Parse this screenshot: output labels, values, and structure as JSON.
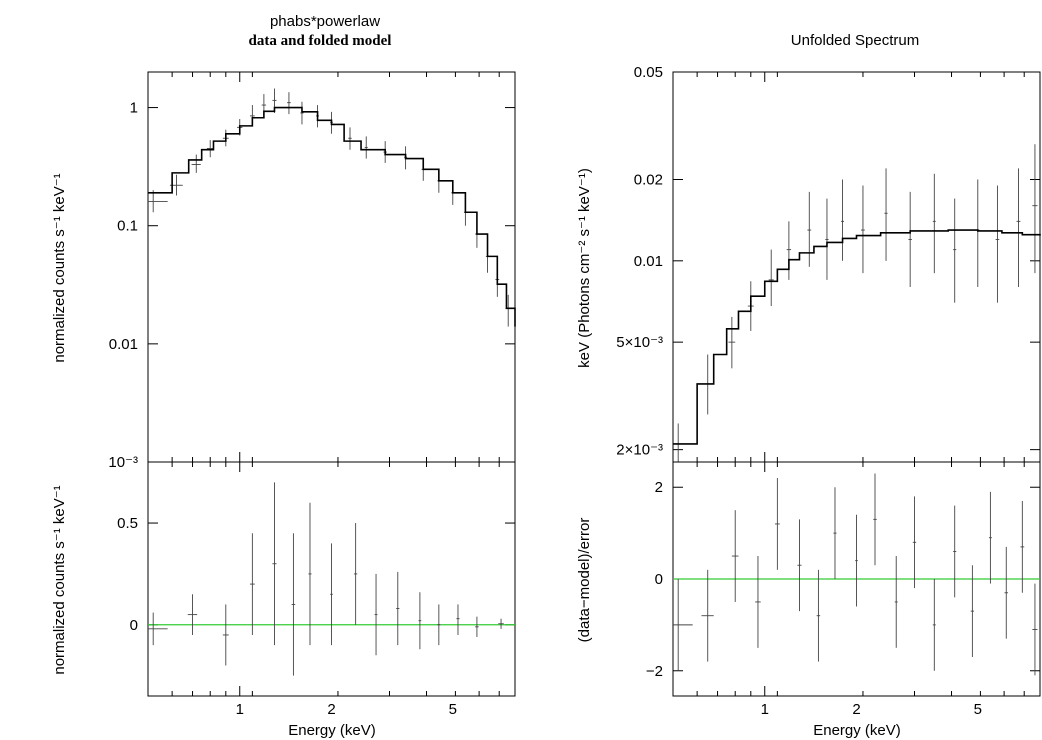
{
  "left": {
    "title": "phabs*powerlaw",
    "subtitle": "data and folded model"
  },
  "right": {
    "title": "Unfolded Spectrum"
  },
  "chart_data": [
    {
      "id": "folded",
      "type": "scatter",
      "ylabel": "normalized counts s⁻¹ keV⁻¹",
      "xscale": "log",
      "yscale": "log",
      "xlim": [
        0.5,
        8.0
      ],
      "ylim": [
        0.001,
        2.0
      ],
      "yticks": [
        {
          "v": 1,
          "label": "1"
        },
        {
          "v": 0.1,
          "label": "0.1"
        },
        {
          "v": 0.01,
          "label": "0.01"
        },
        {
          "v": 0.001,
          "label": "10⁻³"
        }
      ],
      "model_step": [
        [
          0.5,
          0.19
        ],
        [
          0.6,
          0.28
        ],
        [
          0.68,
          0.36
        ],
        [
          0.75,
          0.44
        ],
        [
          0.82,
          0.52
        ],
        [
          0.9,
          0.6
        ],
        [
          1.0,
          0.7
        ],
        [
          1.1,
          0.82
        ],
        [
          1.2,
          0.93
        ],
        [
          1.3,
          1.0
        ],
        [
          1.45,
          1.0
        ],
        [
          1.6,
          0.92
        ],
        [
          1.8,
          0.78
        ],
        [
          2.0,
          0.72
        ],
        [
          2.2,
          0.52
        ],
        [
          2.5,
          0.44
        ],
        [
          3.0,
          0.4
        ],
        [
          3.5,
          0.37
        ],
        [
          4.0,
          0.3
        ],
        [
          4.5,
          0.24
        ],
        [
          5.0,
          0.19
        ],
        [
          5.5,
          0.13
        ],
        [
          6.0,
          0.085
        ],
        [
          6.5,
          0.055
        ],
        [
          7.0,
          0.032
        ],
        [
          7.5,
          0.02
        ],
        [
          8.0,
          0.014
        ]
      ],
      "data_points": [
        {
          "x": 0.52,
          "y": 0.16,
          "dx": 0.06,
          "lo": 0.13,
          "hi": 0.2
        },
        {
          "x": 0.62,
          "y": 0.22,
          "dx": 0.03,
          "lo": 0.18,
          "hi": 0.27
        },
        {
          "x": 0.72,
          "y": 0.33,
          "dx": 0.025,
          "lo": 0.28,
          "hi": 0.4
        },
        {
          "x": 0.8,
          "y": 0.45,
          "dx": 0.02,
          "lo": 0.38,
          "hi": 0.53
        },
        {
          "x": 0.9,
          "y": 0.55,
          "dx": 0.02,
          "lo": 0.47,
          "hi": 0.65
        },
        {
          "x": 1.0,
          "y": 0.68,
          "dx": 0.02,
          "lo": 0.58,
          "hi": 0.8
        },
        {
          "x": 1.1,
          "y": 0.85,
          "dx": 0.02,
          "lo": 0.7,
          "hi": 1.05
        },
        {
          "x": 1.2,
          "y": 1.05,
          "dx": 0.02,
          "lo": 0.85,
          "hi": 1.3
        },
        {
          "x": 1.3,
          "y": 1.15,
          "dx": 0.02,
          "lo": 0.9,
          "hi": 1.45
        },
        {
          "x": 1.45,
          "y": 1.1,
          "dx": 0.02,
          "lo": 0.88,
          "hi": 1.35
        },
        {
          "x": 1.6,
          "y": 0.9,
          "dx": 0.02,
          "lo": 0.72,
          "hi": 1.12
        },
        {
          "x": 1.8,
          "y": 0.85,
          "dx": 0.02,
          "lo": 0.68,
          "hi": 1.05
        },
        {
          "x": 2.0,
          "y": 0.75,
          "dx": 0.02,
          "lo": 0.6,
          "hi": 0.92
        },
        {
          "x": 2.3,
          "y": 0.55,
          "dx": 0.03,
          "lo": 0.44,
          "hi": 0.68
        },
        {
          "x": 2.6,
          "y": 0.46,
          "dx": 0.03,
          "lo": 0.37,
          "hi": 0.57
        },
        {
          "x": 3.0,
          "y": 0.42,
          "dx": 0.04,
          "lo": 0.34,
          "hi": 0.52
        },
        {
          "x": 3.5,
          "y": 0.38,
          "dx": 0.04,
          "lo": 0.3,
          "hi": 0.47
        },
        {
          "x": 4.0,
          "y": 0.3,
          "dx": 0.05,
          "lo": 0.24,
          "hi": 0.37
        },
        {
          "x": 4.5,
          "y": 0.24,
          "dx": 0.05,
          "lo": 0.19,
          "hi": 0.3
        },
        {
          "x": 5.0,
          "y": 0.19,
          "dx": 0.06,
          "lo": 0.15,
          "hi": 0.24
        },
        {
          "x": 5.5,
          "y": 0.13,
          "dx": 0.06,
          "lo": 0.1,
          "hi": 0.16
        },
        {
          "x": 6.0,
          "y": 0.085,
          "dx": 0.08,
          "lo": 0.065,
          "hi": 0.11
        },
        {
          "x": 6.5,
          "y": 0.055,
          "dx": 0.08,
          "lo": 0.04,
          "hi": 0.07
        },
        {
          "x": 7.0,
          "y": 0.035,
          "dx": 0.1,
          "lo": 0.025,
          "hi": 0.045
        },
        {
          "x": 7.6,
          "y": 0.02,
          "dx": 0.15,
          "lo": 0.014,
          "hi": 0.026
        }
      ]
    },
    {
      "id": "folded_residual",
      "type": "scatter",
      "ylabel": "normalized counts s⁻¹ keV⁻¹",
      "xlabel": "Energy (keV)",
      "xscale": "log",
      "yscale": "linear",
      "xlim": [
        0.5,
        8.0
      ],
      "ylim": [
        -0.35,
        0.8
      ],
      "yticks": [
        {
          "v": 0.5,
          "label": "0.5"
        },
        {
          "v": 0,
          "label": "0"
        }
      ],
      "xticks": [
        {
          "v": 1,
          "label": "1"
        },
        {
          "v": 2,
          "label": "2"
        },
        {
          "v": 5,
          "label": "5"
        }
      ],
      "zero_line_color": "#33cc33",
      "data_points": [
        {
          "x": 0.52,
          "y": -0.02,
          "dx": 0.06,
          "lo": -0.1,
          "hi": 0.06
        },
        {
          "x": 0.7,
          "y": 0.05,
          "dx": 0.025,
          "lo": -0.05,
          "hi": 0.15
        },
        {
          "x": 0.9,
          "y": -0.05,
          "dx": 0.02,
          "lo": -0.2,
          "hi": 0.1
        },
        {
          "x": 1.1,
          "y": 0.2,
          "dx": 0.02,
          "lo": -0.05,
          "hi": 0.45
        },
        {
          "x": 1.3,
          "y": 0.3,
          "dx": 0.02,
          "lo": -0.1,
          "hi": 0.7
        },
        {
          "x": 1.5,
          "y": 0.1,
          "dx": 0.02,
          "lo": -0.25,
          "hi": 0.45
        },
        {
          "x": 1.7,
          "y": 0.25,
          "dx": 0.02,
          "lo": -0.1,
          "hi": 0.6
        },
        {
          "x": 2.0,
          "y": 0.15,
          "dx": 0.02,
          "lo": -0.1,
          "hi": 0.4
        },
        {
          "x": 2.4,
          "y": 0.25,
          "dx": 0.03,
          "lo": 0.0,
          "hi": 0.5
        },
        {
          "x": 2.8,
          "y": 0.05,
          "dx": 0.03,
          "lo": -0.15,
          "hi": 0.25
        },
        {
          "x": 3.3,
          "y": 0.08,
          "dx": 0.04,
          "lo": -0.1,
          "hi": 0.26
        },
        {
          "x": 3.9,
          "y": 0.02,
          "dx": 0.04,
          "lo": -0.12,
          "hi": 0.16
        },
        {
          "x": 4.5,
          "y": 0.0,
          "dx": 0.05,
          "lo": -0.1,
          "hi": 0.1
        },
        {
          "x": 5.2,
          "y": 0.03,
          "dx": 0.06,
          "lo": -0.05,
          "hi": 0.1
        },
        {
          "x": 6.0,
          "y": -0.01,
          "dx": 0.08,
          "lo": -0.06,
          "hi": 0.04
        },
        {
          "x": 7.2,
          "y": 0.005,
          "dx": 0.15,
          "lo": -0.02,
          "hi": 0.03
        }
      ]
    },
    {
      "id": "unfolded",
      "type": "scatter",
      "ylabel": "keV (Photons cm⁻² s⁻¹ keV⁻¹)",
      "xscale": "log",
      "yscale": "log",
      "xlim": [
        0.5,
        8.0
      ],
      "ylim": [
        0.0018,
        0.05
      ],
      "yticks": [
        {
          "v": 0.05,
          "label": "0.05"
        },
        {
          "v": 0.02,
          "label": "0.02"
        },
        {
          "v": 0.01,
          "label": "0.01"
        },
        {
          "v": 0.005,
          "label": "5×10⁻³"
        },
        {
          "v": 0.002,
          "label": "2×10⁻³"
        }
      ],
      "model_step": [
        [
          0.5,
          0.0021
        ],
        [
          0.6,
          0.0035
        ],
        [
          0.68,
          0.0045
        ],
        [
          0.75,
          0.0056
        ],
        [
          0.82,
          0.0065
        ],
        [
          0.9,
          0.0074
        ],
        [
          1.0,
          0.0084
        ],
        [
          1.1,
          0.0093
        ],
        [
          1.2,
          0.0101
        ],
        [
          1.3,
          0.0107
        ],
        [
          1.45,
          0.0113
        ],
        [
          1.6,
          0.0117
        ],
        [
          1.8,
          0.0121
        ],
        [
          2.0,
          0.0124
        ],
        [
          2.4,
          0.0127
        ],
        [
          3.0,
          0.0129
        ],
        [
          4.0,
          0.013
        ],
        [
          5.0,
          0.0129
        ],
        [
          6.0,
          0.0127
        ],
        [
          7.0,
          0.0125
        ],
        [
          8.0,
          0.0124
        ]
      ],
      "data_points": [
        {
          "x": 0.52,
          "y": 0.0021,
          "dx": 0.06,
          "lo": 0.0018,
          "hi": 0.0025
        },
        {
          "x": 0.65,
          "y": 0.0035,
          "dx": 0.03,
          "lo": 0.0027,
          "hi": 0.0045
        },
        {
          "x": 0.78,
          "y": 0.005,
          "dx": 0.02,
          "lo": 0.004,
          "hi": 0.0062
        },
        {
          "x": 0.9,
          "y": 0.0068,
          "dx": 0.02,
          "lo": 0.0055,
          "hi": 0.0084
        },
        {
          "x": 1.05,
          "y": 0.0085,
          "dx": 0.02,
          "lo": 0.0068,
          "hi": 0.011
        },
        {
          "x": 1.2,
          "y": 0.011,
          "dx": 0.02,
          "lo": 0.0085,
          "hi": 0.014
        },
        {
          "x": 1.4,
          "y": 0.013,
          "dx": 0.02,
          "lo": 0.0095,
          "hi": 0.018
        },
        {
          "x": 1.6,
          "y": 0.012,
          "dx": 0.02,
          "lo": 0.0085,
          "hi": 0.017
        },
        {
          "x": 1.8,
          "y": 0.014,
          "dx": 0.02,
          "lo": 0.01,
          "hi": 0.02
        },
        {
          "x": 2.1,
          "y": 0.013,
          "dx": 0.03,
          "lo": 0.009,
          "hi": 0.019
        },
        {
          "x": 2.5,
          "y": 0.015,
          "dx": 0.03,
          "lo": 0.01,
          "hi": 0.022
        },
        {
          "x": 3.0,
          "y": 0.012,
          "dx": 0.04,
          "lo": 0.008,
          "hi": 0.018
        },
        {
          "x": 3.6,
          "y": 0.014,
          "dx": 0.04,
          "lo": 0.009,
          "hi": 0.021
        },
        {
          "x": 4.2,
          "y": 0.011,
          "dx": 0.05,
          "lo": 0.007,
          "hi": 0.017
        },
        {
          "x": 5.0,
          "y": 0.013,
          "dx": 0.06,
          "lo": 0.008,
          "hi": 0.02
        },
        {
          "x": 5.8,
          "y": 0.012,
          "dx": 0.08,
          "lo": 0.007,
          "hi": 0.019
        },
        {
          "x": 6.8,
          "y": 0.014,
          "dx": 0.1,
          "lo": 0.008,
          "hi": 0.022
        },
        {
          "x": 7.7,
          "y": 0.016,
          "dx": 0.15,
          "lo": 0.009,
          "hi": 0.027
        }
      ]
    },
    {
      "id": "unfolded_residual",
      "type": "scatter",
      "ylabel": "(data−model)/error",
      "xlabel": "Energy (keV)",
      "xscale": "log",
      "yscale": "linear",
      "xlim": [
        0.5,
        8.0
      ],
      "ylim": [
        -2.55,
        2.55
      ],
      "yticks": [
        {
          "v": 2,
          "label": "2"
        },
        {
          "v": 0,
          "label": "0"
        },
        {
          "v": -2,
          "label": "−2"
        }
      ],
      "xticks": [
        {
          "v": 1,
          "label": "1"
        },
        {
          "v": 2,
          "label": "2"
        },
        {
          "v": 5,
          "label": "5"
        }
      ],
      "zero_line_color": "#33cc33",
      "data_points": [
        {
          "x": 0.52,
          "y": -1.0,
          "dx": 0.06,
          "lo": -2.0,
          "hi": 0.0
        },
        {
          "x": 0.65,
          "y": -0.8,
          "dx": 0.03,
          "lo": -1.8,
          "hi": 0.2
        },
        {
          "x": 0.8,
          "y": 0.5,
          "dx": 0.02,
          "lo": -0.5,
          "hi": 1.5
        },
        {
          "x": 0.95,
          "y": -0.5,
          "dx": 0.02,
          "lo": -1.5,
          "hi": 0.5
        },
        {
          "x": 1.1,
          "y": 1.2,
          "dx": 0.02,
          "lo": 0.2,
          "hi": 2.2
        },
        {
          "x": 1.3,
          "y": 0.3,
          "dx": 0.02,
          "lo": -0.7,
          "hi": 1.3
        },
        {
          "x": 1.5,
          "y": -0.8,
          "dx": 0.02,
          "lo": -1.8,
          "hi": 0.2
        },
        {
          "x": 1.7,
          "y": 1.0,
          "dx": 0.02,
          "lo": 0.0,
          "hi": 2.0
        },
        {
          "x": 2.0,
          "y": 0.4,
          "dx": 0.02,
          "lo": -0.6,
          "hi": 1.4
        },
        {
          "x": 2.3,
          "y": 1.3,
          "dx": 0.03,
          "lo": 0.3,
          "hi": 2.3
        },
        {
          "x": 2.7,
          "y": -0.5,
          "dx": 0.03,
          "lo": -1.5,
          "hi": 0.5
        },
        {
          "x": 3.1,
          "y": 0.8,
          "dx": 0.04,
          "lo": -0.2,
          "hi": 1.8
        },
        {
          "x": 3.6,
          "y": -1.0,
          "dx": 0.04,
          "lo": -2.0,
          "hi": 0.0
        },
        {
          "x": 4.2,
          "y": 0.6,
          "dx": 0.05,
          "lo": -0.4,
          "hi": 1.6
        },
        {
          "x": 4.8,
          "y": -0.7,
          "dx": 0.06,
          "lo": -1.7,
          "hi": 0.3
        },
        {
          "x": 5.5,
          "y": 0.9,
          "dx": 0.06,
          "lo": -0.1,
          "hi": 1.9
        },
        {
          "x": 6.2,
          "y": -0.3,
          "dx": 0.08,
          "lo": -1.3,
          "hi": 0.7
        },
        {
          "x": 7.0,
          "y": 0.7,
          "dx": 0.1,
          "lo": -0.3,
          "hi": 1.7
        },
        {
          "x": 7.7,
          "y": -1.1,
          "dx": 0.15,
          "lo": -2.1,
          "hi": -0.1
        }
      ]
    }
  ],
  "panels_text": {
    "folded_ylabel": "normalized counts s⁻¹ keV⁻¹",
    "folded_res_ylabel": "normalized counts s⁻¹ keV⁻¹",
    "unfolded_ylabel": "keV (Photons cm⁻² s⁻¹ keV⁻¹)",
    "unfolded_res_ylabel": "(data−model)/error",
    "xlabel_left": "Energy (keV)",
    "xlabel_right": "Energy (keV)"
  }
}
